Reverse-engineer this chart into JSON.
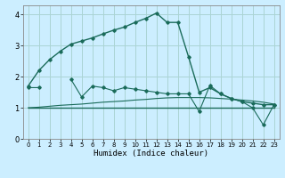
{
  "title": "",
  "xlabel": "Humidex (Indice chaleur)",
  "background_color": "#cceeff",
  "grid_color": "#aad4d4",
  "line_color": "#1a6b5a",
  "x": [
    0,
    1,
    2,
    3,
    4,
    5,
    6,
    7,
    8,
    9,
    10,
    11,
    12,
    13,
    14,
    15,
    16,
    17,
    18,
    19,
    20,
    21,
    22,
    23
  ],
  "line_main": [
    1.7,
    2.2,
    2.55,
    2.82,
    3.05,
    3.15,
    3.25,
    3.38,
    3.5,
    3.6,
    3.75,
    3.88,
    4.05,
    3.75,
    3.75,
    2.65,
    1.5,
    1.65,
    1.45,
    1.3,
    1.2,
    1.15,
    1.1,
    1.1
  ],
  "line_flat1": [
    1.0,
    1.0,
    1.0,
    1.0,
    1.0,
    1.0,
    1.0,
    1.0,
    1.0,
    1.0,
    1.0,
    1.0,
    1.0,
    1.0,
    1.0,
    1.0,
    1.0,
    1.0,
    1.0,
    1.0,
    1.0,
    1.0,
    1.0,
    1.0
  ],
  "line_flat2": [
    1.0,
    1.02,
    1.05,
    1.08,
    1.1,
    1.12,
    1.15,
    1.18,
    1.2,
    1.22,
    1.25,
    1.27,
    1.3,
    1.32,
    1.33,
    1.33,
    1.33,
    1.32,
    1.3,
    1.28,
    1.25,
    1.22,
    1.18,
    1.12
  ],
  "line_secondary": [
    1.65,
    1.65,
    null,
    null,
    1.92,
    1.35,
    1.7,
    1.65,
    1.55,
    1.65,
    1.6,
    1.55,
    1.5,
    1.45,
    1.45,
    1.45,
    0.88,
    1.72,
    1.45,
    1.3,
    1.2,
    1.0,
    0.45,
    1.1
  ],
  "ylim": [
    0,
    4.3
  ],
  "xlim": [
    -0.5,
    23.5
  ],
  "yticks": [
    0,
    1,
    2,
    3,
    4
  ],
  "xticks": [
    0,
    1,
    2,
    3,
    4,
    5,
    6,
    7,
    8,
    9,
    10,
    11,
    12,
    13,
    14,
    15,
    16,
    17,
    18,
    19,
    20,
    21,
    22,
    23
  ]
}
